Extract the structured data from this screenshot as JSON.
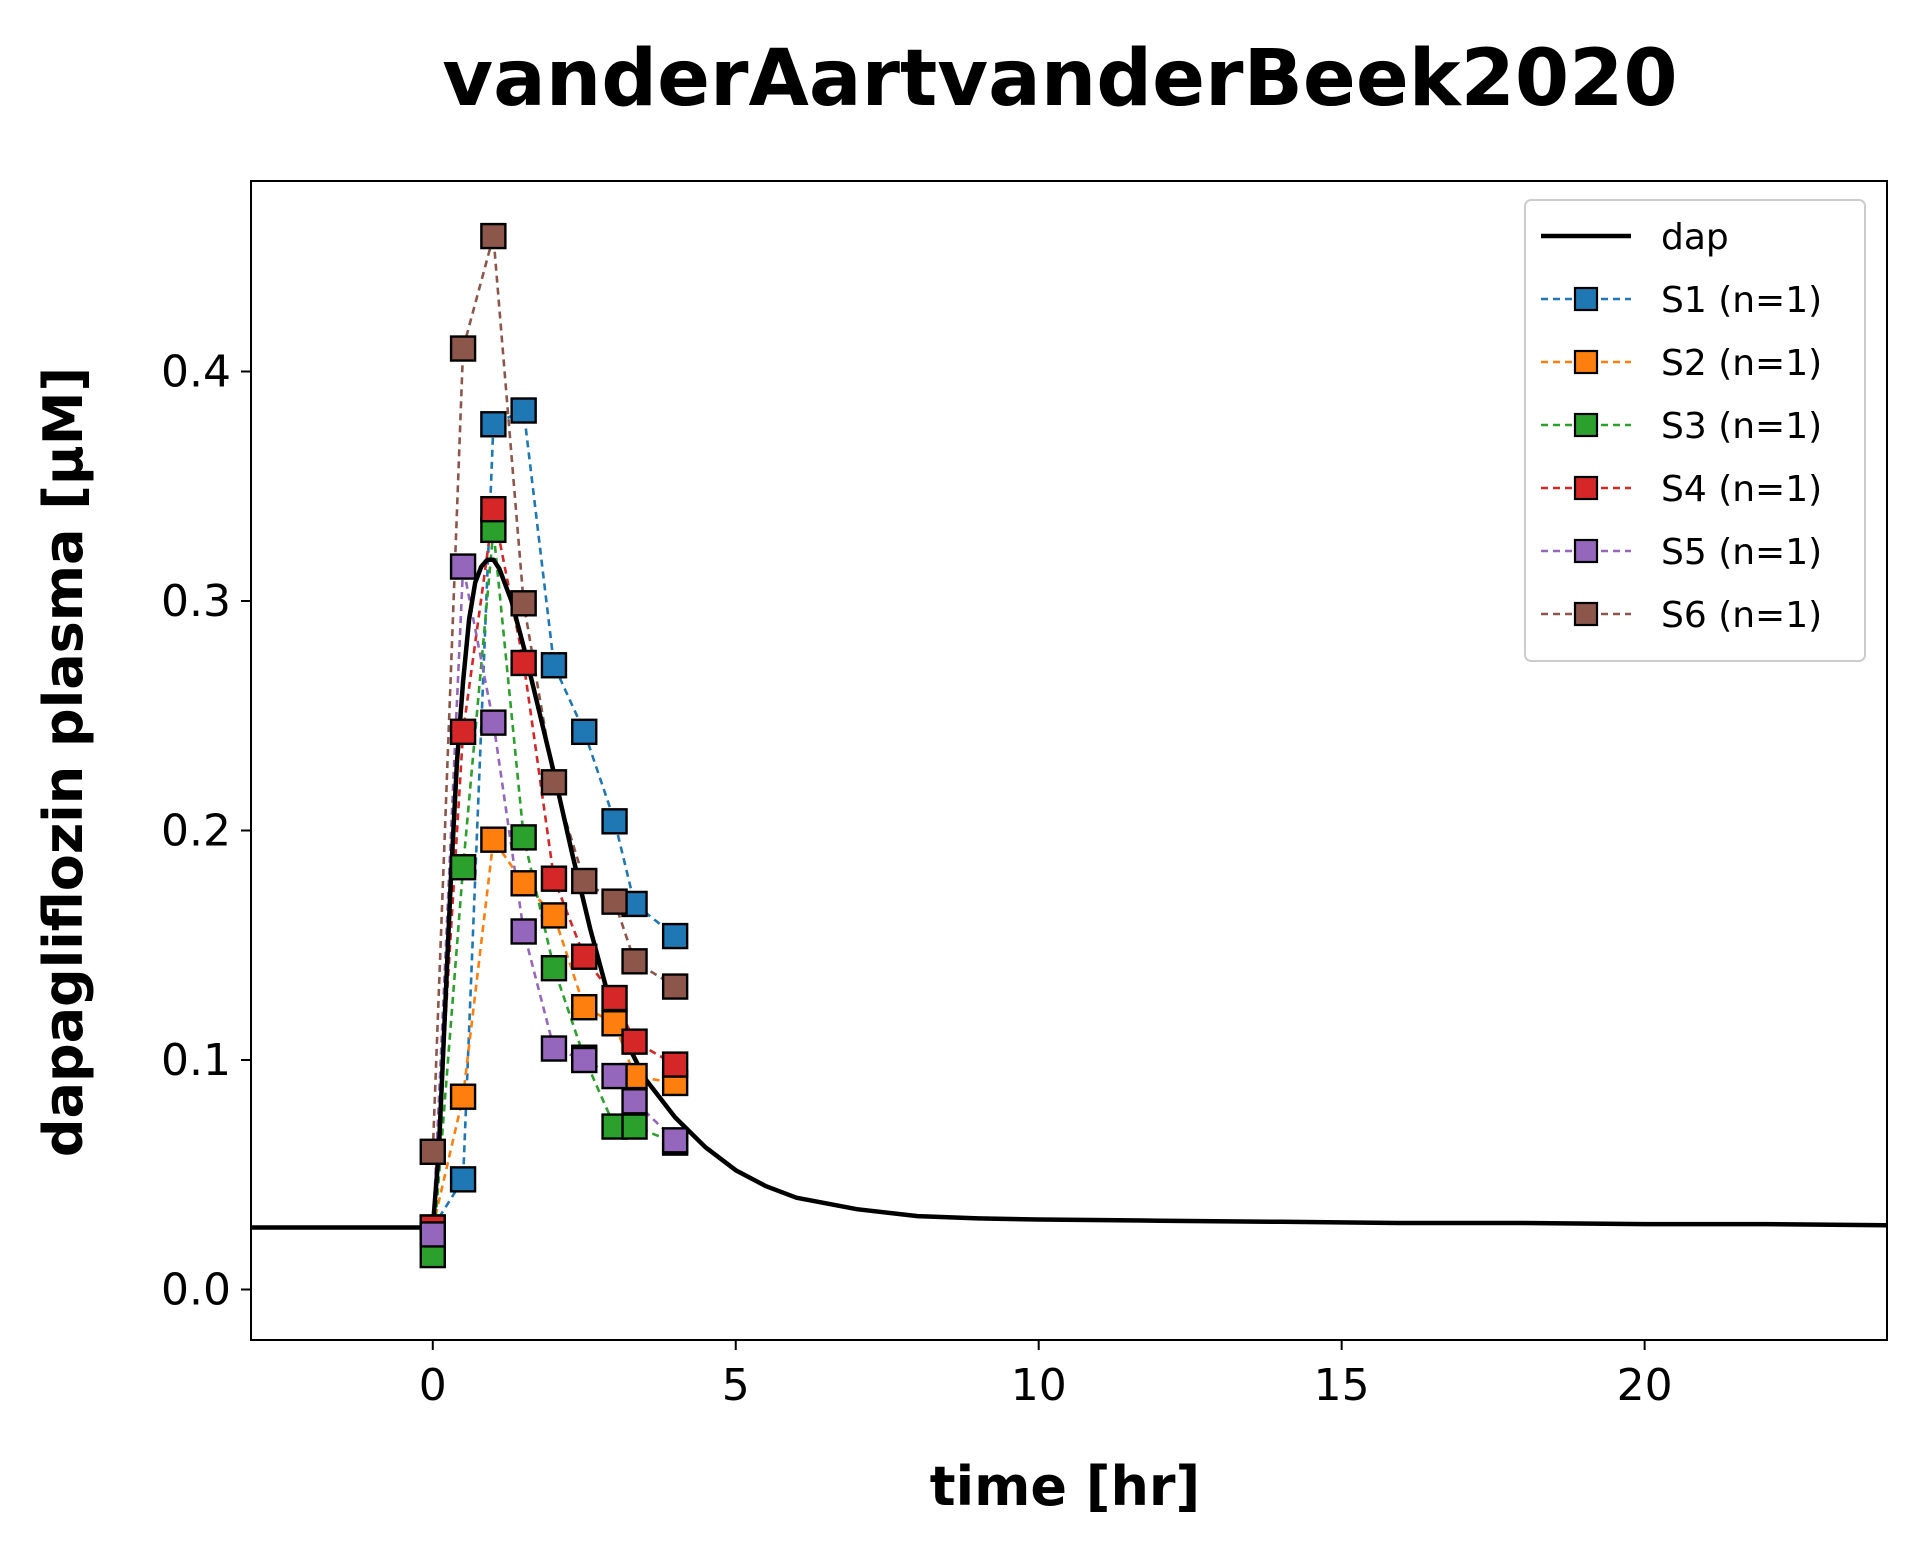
{
  "chart_data": {
    "type": "line",
    "title": "vanderAartvanderBeek2020",
    "xlabel": "time [hr]",
    "ylabel": "dapagliflozin plasma [µM]",
    "xlim": [
      -3,
      24
    ],
    "ylim": [
      -0.022,
      0.483
    ],
    "xticks": [
      0,
      5,
      10,
      15,
      20
    ],
    "yticks": [
      0.0,
      0.1,
      0.2,
      0.3,
      0.4
    ],
    "xtick_labels": [
      "0",
      "5",
      "10",
      "15",
      "20"
    ],
    "ytick_labels": [
      "0.0",
      "0.1",
      "0.2",
      "0.3",
      "0.4"
    ],
    "legend_position": "top-right",
    "grid": false,
    "model": {
      "name": "dap",
      "color": "#000000",
      "x": [
        -3,
        0,
        0.1,
        0.2,
        0.3,
        0.4,
        0.5,
        0.6,
        0.7,
        0.8,
        0.9,
        1.0,
        1.1,
        1.3,
        1.5,
        1.7,
        2.0,
        2.3,
        2.6,
        3.0,
        3.5,
        4.0,
        4.5,
        5.0,
        5.5,
        6.0,
        7.0,
        8.0,
        9.0,
        10.0,
        12.0,
        14.0,
        16.0,
        18.0,
        20.0,
        22.0,
        24.0
      ],
      "y": [
        0.027,
        0.027,
        0.06,
        0.12,
        0.18,
        0.23,
        0.265,
        0.292,
        0.308,
        0.315,
        0.318,
        0.318,
        0.314,
        0.3,
        0.28,
        0.258,
        0.225,
        0.19,
        0.157,
        0.118,
        0.092,
        0.075,
        0.062,
        0.052,
        0.045,
        0.04,
        0.035,
        0.032,
        0.031,
        0.0305,
        0.03,
        0.0295,
        0.029,
        0.029,
        0.0285,
        0.0285,
        0.028
      ]
    },
    "series": [
      {
        "name": "S1 (n=1)",
        "color": "#1f77b4",
        "x": [
          0,
          0.5,
          1.0,
          1.5,
          2.0,
          2.5,
          3.0,
          3.33,
          4.0
        ],
        "y": [
          0.027,
          0.048,
          0.377,
          0.383,
          0.272,
          0.243,
          0.204,
          0.168,
          0.154
        ]
      },
      {
        "name": "S2 (n=1)",
        "color": "#ff7f0e",
        "x": [
          0,
          0.5,
          1.0,
          1.5,
          2.0,
          2.5,
          3.0,
          3.33,
          4.0
        ],
        "y": [
          0.027,
          0.084,
          0.196,
          0.177,
          0.163,
          0.123,
          0.116,
          0.093,
          0.09
        ]
      },
      {
        "name": "S3 (n=1)",
        "color": "#2ca02c",
        "x": [
          0,
          0.5,
          1.0,
          1.5,
          2.0,
          2.5,
          3.0,
          3.33,
          4.0
        ],
        "y": [
          0.015,
          0.184,
          0.331,
          0.197,
          0.14,
          0.101,
          0.071,
          0.071,
          0.064
        ]
      },
      {
        "name": "S4 (n=1)",
        "color": "#d62728",
        "x": [
          0,
          0.5,
          1.0,
          1.5,
          2.0,
          2.5,
          3.0,
          3.33,
          4.0
        ],
        "y": [
          0.027,
          0.243,
          0.34,
          0.273,
          0.179,
          0.145,
          0.127,
          0.108,
          0.098
        ]
      },
      {
        "name": "S5 (n=1)",
        "color": "#9467bd",
        "x": [
          0,
          0.5,
          1.0,
          1.5,
          2.0,
          2.5,
          3.0,
          3.33,
          4.0
        ],
        "y": [
          0.024,
          0.315,
          0.247,
          0.156,
          0.105,
          0.1,
          0.093,
          0.082,
          0.065
        ]
      },
      {
        "name": "S6 (n=1)",
        "color": "#8c564b",
        "x": [
          0,
          0.5,
          1.0,
          1.5,
          2.0,
          2.5,
          3.0,
          3.33,
          4.0
        ],
        "y": [
          0.06,
          0.41,
          0.459,
          0.299,
          0.221,
          0.178,
          0.169,
          0.143,
          0.132
        ]
      }
    ]
  }
}
